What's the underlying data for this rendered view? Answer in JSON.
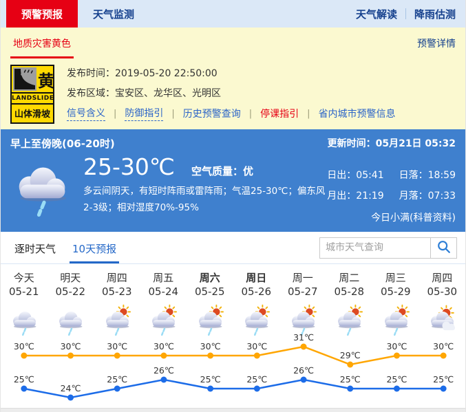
{
  "colors": {
    "alert_red": "#e60014",
    "nav_blue": "#16418e",
    "panel_blue": "#3f80ce",
    "link_blue": "#2b64c8",
    "high_line": "#ffa602",
    "low_line": "#1c6ce8",
    "badge_yellow": "#ffd900"
  },
  "nav": {
    "tabs": [
      {
        "label": "预警预报",
        "active": true
      },
      {
        "label": "天气监测",
        "active": false
      }
    ],
    "right_links": [
      "天气解读",
      "降雨估测"
    ]
  },
  "alert": {
    "tab": "地质灾害黄色",
    "detail_link": "预警详情",
    "badge": {
      "char": "黄",
      "en": "LANDSLIDE",
      "cn": "山体滑坡"
    },
    "publish_time_label": "发布时间：",
    "publish_time": "2019-05-20 22:50:00",
    "area_label": "发布区域：",
    "area": "宝安区、龙华区、光明区",
    "separator": "|",
    "links": [
      {
        "label": "信号含义",
        "dotted": true
      },
      {
        "label": "防御指引",
        "dotted": true
      },
      {
        "label": "历史预警查询"
      },
      {
        "label": "停课指引",
        "highlight": true
      },
      {
        "label": "省内城市预警信息"
      }
    ]
  },
  "current": {
    "period": "早上至傍晚(06-20时)",
    "update": "更新时间：05月21日 05:32",
    "temp_range": "25-30℃",
    "air_quality": "空气质量：优",
    "description": "多云间阴天，有短时阵雨或雷阵雨；气温25-30℃；偏东风2-3级；相对湿度70%-95%",
    "sunrise": "日出：05:41",
    "sunset": "日落：18:59",
    "moonrise": "月出：21:19",
    "moonset": "月落：07:33",
    "solar_term": "今日小满(科普资料)",
    "icon": "rain"
  },
  "forecast_tabs": {
    "tabs": [
      {
        "label": "逐时天气",
        "active": false
      },
      {
        "label": "10天预报",
        "active": true
      }
    ],
    "search_placeholder": "城市天气查询"
  },
  "chart_data": {
    "type": "line",
    "title": "10天预报",
    "unit": "℃",
    "grid": false,
    "legend": "none",
    "ylim": [
      23,
      32
    ],
    "days": [
      {
        "day": "今天",
        "date": "05-21",
        "icon": "rain",
        "bold": false
      },
      {
        "day": "明天",
        "date": "05-22",
        "icon": "rain",
        "bold": false
      },
      {
        "day": "周四",
        "date": "05-23",
        "icon": "sun-rain",
        "bold": false
      },
      {
        "day": "周五",
        "date": "05-24",
        "icon": "sun-rain",
        "bold": false
      },
      {
        "day": "周六",
        "date": "05-25",
        "icon": "sun-rain",
        "bold": true
      },
      {
        "day": "周日",
        "date": "05-26",
        "icon": "sun-rain",
        "bold": true
      },
      {
        "day": "周一",
        "date": "05-27",
        "icon": "sun-rain",
        "bold": false
      },
      {
        "day": "周二",
        "date": "05-28",
        "icon": "sun-rain",
        "bold": false
      },
      {
        "day": "周三",
        "date": "05-29",
        "icon": "sun-rain",
        "bold": false
      },
      {
        "day": "周四",
        "date": "05-30",
        "icon": "sun-cloud",
        "bold": false
      }
    ],
    "series": [
      {
        "name": "high",
        "color": "#ffa602",
        "values": [
          30,
          30,
          30,
          30,
          30,
          30,
          31,
          29,
          30,
          30
        ]
      },
      {
        "name": "low",
        "color": "#1c6ce8",
        "values": [
          25,
          24,
          25,
          26,
          25,
          25,
          26,
          25,
          25,
          25
        ]
      }
    ]
  }
}
